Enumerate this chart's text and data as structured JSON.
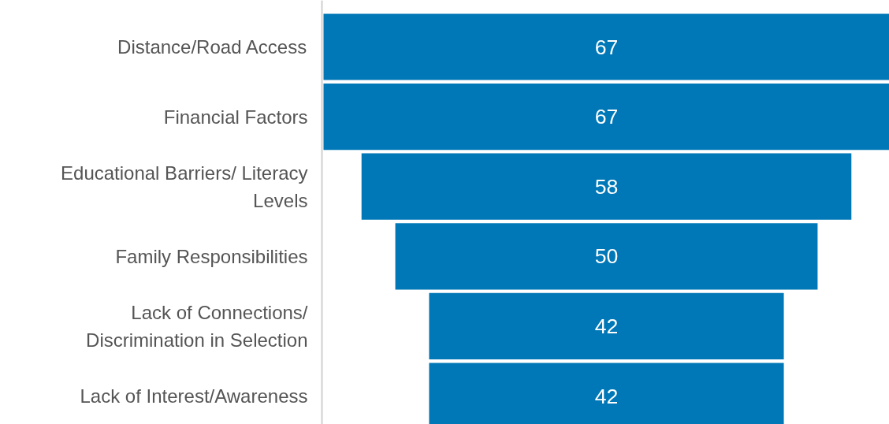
{
  "chart_data": {
    "type": "other",
    "categories": [
      "Distance/Road Access",
      "Financial Factors",
      "Educational Barriers/ Literacy Levels",
      "Family Responsibilities",
      "Lack of Connections/ Discrimination in Selection",
      "Lack of Interest/Awareness"
    ],
    "values": [
      67,
      67,
      58,
      50,
      42,
      42
    ],
    "color": "#0077b6",
    "data_labels": true
  }
}
